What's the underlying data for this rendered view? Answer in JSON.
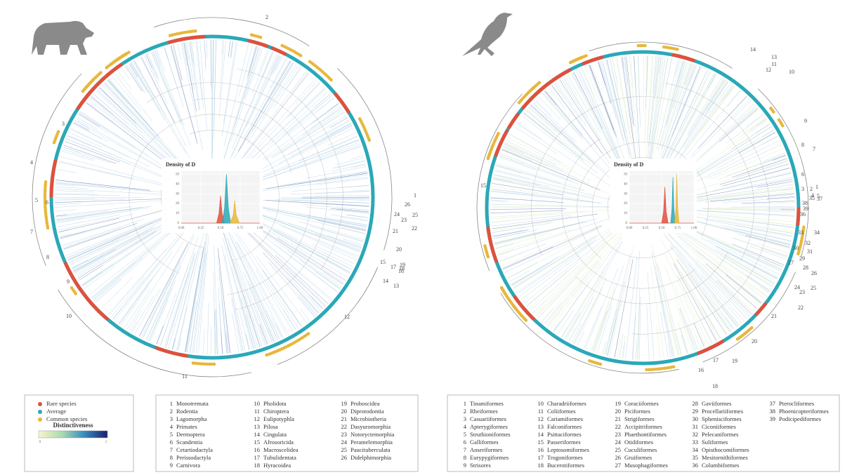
{
  "chart_data": [
    {
      "type": "density",
      "title": "Density of D",
      "xlim": [
        0,
        1
      ],
      "xticks": [
        {
          "value": 0,
          "label": "0.00"
        },
        {
          "value": 0.25,
          "label": "0.25"
        },
        {
          "value": 0.5,
          "label": "0.50"
        },
        {
          "value": 0.75,
          "label": "0.75"
        },
        {
          "value": 1,
          "label": "1.00"
        }
      ],
      "ylim": [
        0,
        53
      ],
      "yticks": [
        0,
        10,
        20,
        30,
        40,
        50
      ],
      "grid": true,
      "series": [
        {
          "color": "#e0503c",
          "x": [
            0.45,
            0.48,
            0.5,
            0.52,
            0.55
          ],
          "values": [
            0,
            10,
            28,
            10,
            0
          ]
        },
        {
          "color": "#2aa8b8",
          "x": [
            0.52,
            0.55,
            0.575,
            0.6,
            0.63
          ],
          "values": [
            0,
            15,
            50,
            15,
            0
          ]
        },
        {
          "color": "#e8b73a",
          "x": [
            0.62,
            0.66,
            0.68,
            0.7,
            0.74
          ],
          "values": [
            0,
            8,
            23,
            8,
            0
          ]
        }
      ]
    },
    {
      "type": "density",
      "title": "Density of D",
      "xlim": [
        0,
        1
      ],
      "xticks": [
        {
          "value": 0,
          "label": "0.00"
        },
        {
          "value": 0.25,
          "label": "0.25"
        },
        {
          "value": 0.5,
          "label": "0.50"
        },
        {
          "value": 0.75,
          "label": "0.75"
        },
        {
          "value": 1,
          "label": "1.00"
        }
      ],
      "ylim": [
        0,
        53
      ],
      "yticks": [
        0,
        10,
        20,
        30,
        40,
        50
      ],
      "grid": true,
      "series": [
        {
          "color": "#e0503c",
          "x": [
            0.5,
            0.53,
            0.55,
            0.57,
            0.6
          ],
          "values": [
            0,
            12,
            37,
            12,
            0
          ]
        },
        {
          "color": "#2aa8b8",
          "x": [
            0.64,
            0.66,
            0.675,
            0.69,
            0.71
          ],
          "values": [
            0,
            15,
            47,
            15,
            0
          ]
        },
        {
          "color": "#e8b73a",
          "x": [
            0.7,
            0.72,
            0.735,
            0.75,
            0.77
          ],
          "values": [
            0,
            15,
            50,
            15,
            0
          ]
        }
      ]
    }
  ],
  "legend": {
    "items": [
      {
        "name": "Rare species",
        "color": "#e0503c"
      },
      {
        "name": "Average",
        "color": "#2aa8b8"
      },
      {
        "name": "Common species",
        "color": "#e8b73a"
      }
    ],
    "colorbar": {
      "title": "Distinctiveness",
      "min": 0,
      "max": 1
    }
  },
  "mammal_orders": [
    {
      "number": 1,
      "name": "Monotremata"
    },
    {
      "number": 2,
      "name": "Rodentia"
    },
    {
      "number": 3,
      "name": "Lagomorpha"
    },
    {
      "number": 4,
      "name": "Primates"
    },
    {
      "number": 5,
      "name": "Dermoptera"
    },
    {
      "number": 6,
      "name": "Scandentia"
    },
    {
      "number": 7,
      "name": "Cetartiodactyla"
    },
    {
      "number": 8,
      "name": "Perissodactyla"
    },
    {
      "number": 9,
      "name": "Carnivora"
    },
    {
      "number": 10,
      "name": "Pholidota"
    },
    {
      "number": 11,
      "name": "Chiroptera"
    },
    {
      "number": 12,
      "name": "Eulipotyphla"
    },
    {
      "number": 13,
      "name": "Pilosa"
    },
    {
      "number": 14,
      "name": "Cingulata"
    },
    {
      "number": 15,
      "name": "Afrosoricida"
    },
    {
      "number": 16,
      "name": "Macroscelidea"
    },
    {
      "number": 17,
      "name": "Tubulidentata"
    },
    {
      "number": 18,
      "name": "Hyracoidea"
    },
    {
      "number": 19,
      "name": "Proboscidea"
    },
    {
      "number": 20,
      "name": "Diprotodontia"
    },
    {
      "number": 21,
      "name": "Microbiotheria"
    },
    {
      "number": 22,
      "name": "Dasyuromorphia"
    },
    {
      "number": 23,
      "name": "Notoryctemorphia"
    },
    {
      "number": 24,
      "name": "Peramelemorphia"
    },
    {
      "number": 25,
      "name": "Paucituberculata"
    },
    {
      "number": 26,
      "name": "Didelphimorphia"
    }
  ],
  "bird_orders": [
    {
      "number": 1,
      "name": "Tinamiformes"
    },
    {
      "number": 2,
      "name": "Rheiformes"
    },
    {
      "number": 3,
      "name": "Casuariiformes"
    },
    {
      "number": 4,
      "name": "Apterygiformes"
    },
    {
      "number": 5,
      "name": "Struthioniformes"
    },
    {
      "number": 6,
      "name": "Galliformes"
    },
    {
      "number": 7,
      "name": "Anseriformes"
    },
    {
      "number": 8,
      "name": "Eurypygiformes"
    },
    {
      "number": 9,
      "name": "Strisores"
    },
    {
      "number": 10,
      "name": "Charadriiformes"
    },
    {
      "number": 11,
      "name": "Coliiformes"
    },
    {
      "number": 12,
      "name": "Cariamiformes"
    },
    {
      "number": 13,
      "name": "Falconiformes"
    },
    {
      "number": 14,
      "name": "Psittaciformes"
    },
    {
      "number": 15,
      "name": "Passeriformes"
    },
    {
      "number": 16,
      "name": "Leptosomiformes"
    },
    {
      "number": 17,
      "name": "Trogoniformes"
    },
    {
      "number": 18,
      "name": "Bucerotiformes"
    },
    {
      "number": 19,
      "name": "Coraciiformes"
    },
    {
      "number": 20,
      "name": "Piciformes"
    },
    {
      "number": 21,
      "name": "Strigiformes"
    },
    {
      "number": 22,
      "name": "Accipitriformes"
    },
    {
      "number": 23,
      "name": "Phaethontiformes"
    },
    {
      "number": 24,
      "name": "Otidiformes"
    },
    {
      "number": 25,
      "name": "Cuculiformes"
    },
    {
      "number": 26,
      "name": "Gruiformes"
    },
    {
      "number": 27,
      "name": "Musophagiformes"
    },
    {
      "number": 28,
      "name": "Gaviiformes"
    },
    {
      "number": 29,
      "name": "Procellariiformes"
    },
    {
      "number": 30,
      "name": "Sphenisciformes"
    },
    {
      "number": 31,
      "name": "Ciconiiformes"
    },
    {
      "number": 32,
      "name": "Pelecaniformes"
    },
    {
      "number": 33,
      "name": "Suliformes"
    },
    {
      "number": 34,
      "name": "Opisthocomiformes"
    },
    {
      "number": 35,
      "name": "Mesitornithiformes"
    },
    {
      "number": 36,
      "name": "Columbiformes"
    },
    {
      "number": 37,
      "name": "Pterocliformes"
    },
    {
      "number": 38,
      "name": "Phoenicopteriformes"
    },
    {
      "number": 39,
      "name": "Podicipediformes"
    }
  ]
}
